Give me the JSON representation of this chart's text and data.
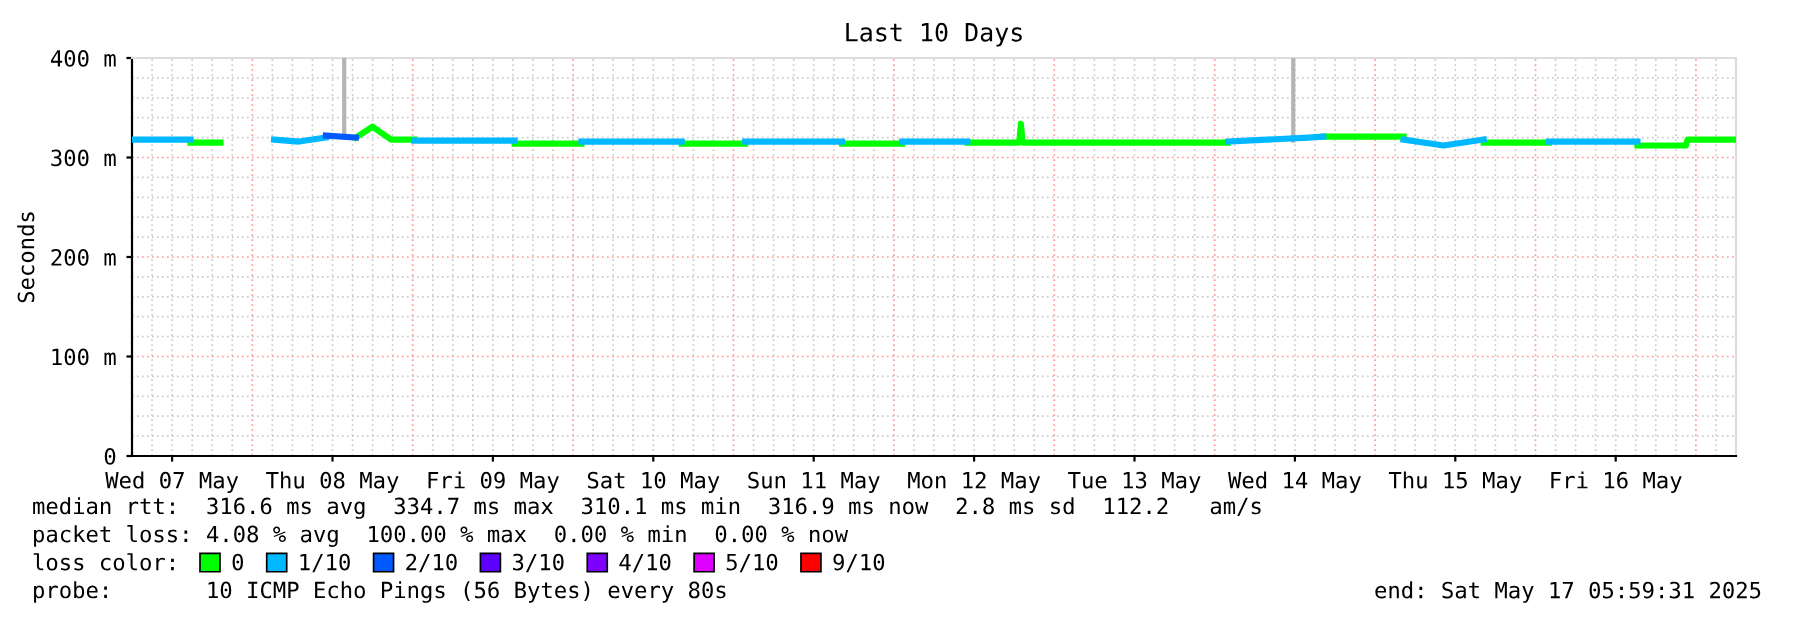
{
  "chart_data": {
    "type": "line",
    "title": "Last 10 Days",
    "ylabel": "Seconds",
    "xlim": [
      "2025-05-07T06:00",
      "2025-05-17T06:00"
    ],
    "xticks": [
      {
        "value": "2025-05-07T12:00",
        "label": "Wed 07 May"
      },
      {
        "value": "2025-05-08T12:00",
        "label": "Thu 08 May"
      },
      {
        "value": "2025-05-09T12:00",
        "label": "Fri 09 May"
      },
      {
        "value": "2025-05-10T12:00",
        "label": "Sat 10 May"
      },
      {
        "value": "2025-05-11T12:00",
        "label": "Sun 11 May"
      },
      {
        "value": "2025-05-12T12:00",
        "label": "Mon 12 May"
      },
      {
        "value": "2025-05-13T12:00",
        "label": "Tue 13 May"
      },
      {
        "value": "2025-05-14T12:00",
        "label": "Wed 14 May"
      },
      {
        "value": "2025-05-15T12:00",
        "label": "Thu 15 May"
      },
      {
        "value": "2025-05-16T12:00",
        "label": "Fri 16 May"
      }
    ],
    "ylim": [
      0,
      400
    ],
    "yticks": [
      0,
      {
        "value": 100,
        "label": "100 m"
      },
      {
        "value": 200,
        "label": "200 m"
      },
      {
        "value": 300,
        "label": "300 m"
      },
      {
        "value": 400,
        "label": "400 m"
      }
    ],
    "grid": true,
    "legend": "bottom",
    "legend_title": "loss color:",
    "series": [
      {
        "color": "#b4b4b4",
        "x": [
          "2025-05-08T13:45",
          "2025-05-08T13:45",
          null,
          "2025-05-14T11:45",
          "2025-05-14T11:45"
        ],
        "values": [
          320,
          400,
          null,
          317,
          400
        ]
      },
      {
        "name": "0",
        "color": "#00ff00",
        "x": [
          "2025-05-07T14:45",
          "2025-05-07T19:15",
          null,
          "2025-05-08T15:30",
          "2025-05-08T18:00",
          "2025-05-08T20:45",
          "2025-05-09T00:15",
          null,
          "2025-05-09T15:15",
          "2025-05-10T01:15",
          null,
          "2025-05-10T16:15",
          "2025-05-11T01:45",
          null,
          "2025-05-11T16:15",
          "2025-05-12T01:15",
          null,
          "2025-05-12T11:00",
          "2025-05-12T18:45",
          "2025-05-12T19:00",
          "2025-05-12T19:15",
          "2025-05-14T02:00",
          null,
          "2025-05-14T16:15",
          "2025-05-15T04:15",
          null,
          "2025-05-15T16:15",
          "2025-05-16T02:00",
          null,
          "2025-05-16T15:15",
          "2025-05-16T22:30",
          "2025-05-16T22:45",
          "2025-05-17T05:45"
        ],
        "values": [
          315,
          315,
          null,
          320,
          331,
          318,
          318,
          null,
          314,
          314,
          null,
          314,
          314,
          null,
          314,
          314,
          null,
          315,
          315,
          334,
          315,
          315,
          null,
          321,
          321,
          null,
          315,
          315,
          null,
          312,
          312,
          318,
          318
        ]
      },
      {
        "name": "1/10",
        "color": "#00b8ff",
        "x": [
          "2025-05-07T06:15",
          "2025-05-07T14:45",
          null,
          "2025-05-08T03:15",
          "2025-05-08T07:00",
          "2025-05-08T11:00",
          null,
          "2025-05-09T00:15",
          "2025-05-09T15:15",
          null,
          "2025-05-10T01:15",
          "2025-05-10T16:15",
          null,
          "2025-05-11T01:45",
          "2025-05-11T16:15",
          null,
          "2025-05-12T01:15",
          "2025-05-12T11:00",
          null,
          "2025-05-14T02:00",
          "2025-05-14T14:00",
          "2025-05-14T16:15",
          null,
          "2025-05-15T04:15",
          "2025-05-15T10:15",
          "2025-05-15T16:15",
          null,
          "2025-05-16T02:00",
          "2025-05-16T15:15"
        ],
        "values": [
          318,
          318,
          null,
          318,
          316,
          320,
          null,
          317,
          317,
          null,
          316,
          316,
          null,
          316,
          316,
          null,
          316,
          316,
          null,
          316,
          320,
          321,
          null,
          318,
          312,
          318,
          null,
          316,
          316
        ]
      },
      {
        "name": "2/10",
        "color": "#0059ff",
        "x": [
          "2025-05-08T11:00",
          "2025-05-08T15:30"
        ],
        "values": [
          322,
          320
        ]
      },
      {
        "name": "3/10",
        "color": "#5e00ff"
      },
      {
        "name": "4/10",
        "color": "#7e00ff"
      },
      {
        "name": "5/10",
        "color": "#dd00ff"
      },
      {
        "name": "9/10",
        "color": "#ff0000"
      }
    ],
    "annotations": [
      "median rtt:  316.6 ms avg  334.7 ms max  310.1 ms min  316.9 ms now  2.8 ms sd  112.2   am/s",
      "packet loss: 4.08 % avg  100.00 % max  0.00 % min  0.00 % now",
      "probe:       10 ICMP Echo Pings (56 Bytes) every 80s",
      "end: Sat May 17 05:59:31 2025"
    ]
  }
}
